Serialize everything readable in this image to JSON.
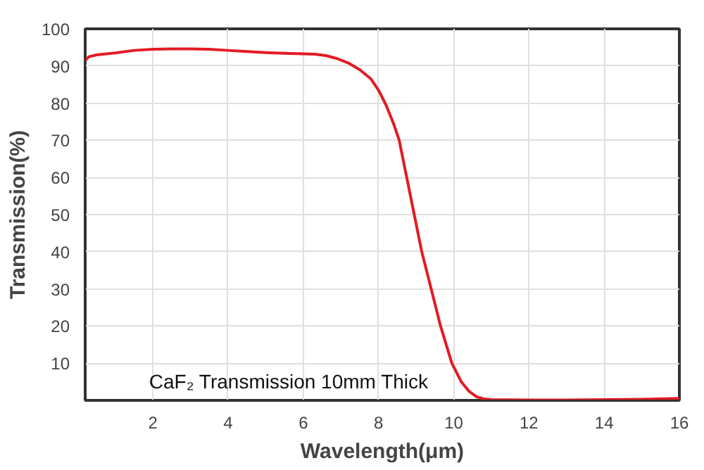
{
  "chart_data": {
    "type": "line",
    "xlabel": "Wavelength(μm)",
    "ylabel": "Transmission(%)",
    "annotations": [
      "CaF₂ Transmission 10mm Thick"
    ],
    "x": [
      0.2,
      0.3,
      0.5,
      1.0,
      1.5,
      2.0,
      2.5,
      3.0,
      3.5,
      4.0,
      4.5,
      5.0,
      5.5,
      6.0,
      6.3,
      6.6,
      6.9,
      7.2,
      7.5,
      7.8,
      8.0,
      8.2,
      8.4,
      8.55,
      8.75,
      8.95,
      9.15,
      9.4,
      9.65,
      9.95,
      10.2,
      10.4,
      10.6,
      10.8,
      11.0,
      12.0,
      13.0,
      14.0,
      15.0,
      16.0
    ],
    "series": [
      {
        "color": "#e31b23",
        "values": [
          91.5,
          92.5,
          93.0,
          93.5,
          94.2,
          94.5,
          94.6,
          94.6,
          94.5,
          94.2,
          93.9,
          93.6,
          93.4,
          93.3,
          93.2,
          92.8,
          92.0,
          90.8,
          89.0,
          86.5,
          83.5,
          79.5,
          74.5,
          70,
          60,
          50,
          40,
          30,
          20,
          10,
          5,
          2.5,
          1.0,
          0.4,
          0.2,
          0.1,
          0.1,
          0.2,
          0.3,
          0.5
        ]
      }
    ],
    "xlim": [
      0.2,
      16
    ],
    "ylim": [
      0,
      100
    ],
    "xticks": [
      2,
      4,
      6,
      8,
      10,
      12,
      14,
      16
    ],
    "yticks": [
      10,
      20,
      30,
      40,
      50,
      60,
      70,
      80,
      90,
      100
    ],
    "grid": true,
    "line_style": "solid",
    "marker": "none"
  }
}
